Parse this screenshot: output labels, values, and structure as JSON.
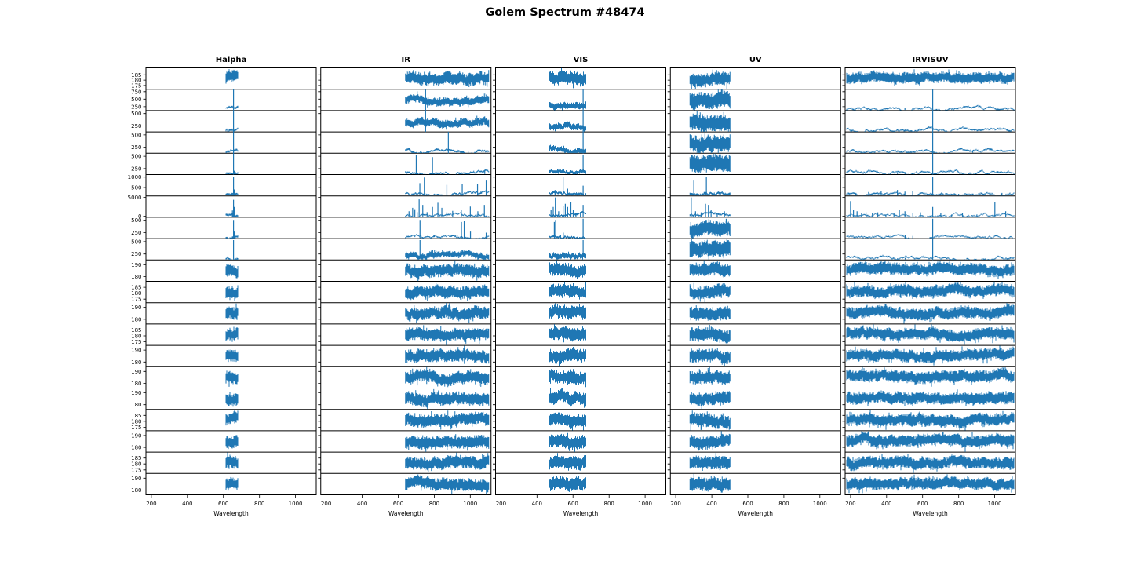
{
  "title": "Golem Spectrum #48474",
  "style": {
    "line_color": "#1f77b4",
    "axis_color": "#000000",
    "background": "#ffffff",
    "text_color": "#000000"
  },
  "chart_data": {
    "type": "line",
    "title": "Golem Spectrum #48474",
    "xlabel": "Wavelength",
    "x_ticks": [
      200,
      400,
      600,
      800,
      1000
    ],
    "xlim": [
      170,
      1115
    ],
    "grid": {
      "rows": 20,
      "cols": 5,
      "legend": "none",
      "gridlines": false
    },
    "line_color": "#1f77b4",
    "columns": [
      {
        "label": "Halpha",
        "wavelength_range": [
          615,
          680
        ]
      },
      {
        "label": "IR",
        "wavelength_range": [
          640,
          1100
        ]
      },
      {
        "label": "VIS",
        "wavelength_range": [
          465,
          670
        ]
      },
      {
        "label": "UV",
        "wavelength_range": [
          278,
          500
        ]
      },
      {
        "label": "IRVISUV",
        "wavelength_range": [
          180,
          1105
        ]
      }
    ],
    "rows": [
      {
        "ylim": [
          171.5,
          191.5
        ],
        "yticks": [
          175,
          180,
          185
        ]
      },
      {
        "ylim": [
          120,
          830
        ],
        "yticks": [
          250,
          500,
          750
        ]
      },
      {
        "ylim": [
          130,
          560
        ],
        "yticks": [
          250,
          500
        ]
      },
      {
        "ylim": [
          130,
          560
        ],
        "yticks": [
          250,
          500
        ]
      },
      {
        "ylim": [
          130,
          560
        ],
        "yticks": [
          250,
          500
        ]
      },
      {
        "ylim": [
          100,
          1120
        ],
        "yticks": [
          500,
          1000
        ]
      },
      {
        "ylim": [
          -250,
          5350
        ],
        "yticks": [
          0,
          5000
        ]
      },
      {
        "ylim": [
          130,
          560
        ],
        "yticks": [
          250,
          500
        ]
      },
      {
        "ylim": [
          130,
          560
        ],
        "yticks": [
          250,
          500
        ]
      },
      {
        "ylim": [
          176,
          194
        ],
        "yticks": [
          180,
          190
        ]
      },
      {
        "ylim": [
          172,
          190
        ],
        "yticks": [
          175,
          180,
          185
        ]
      },
      {
        "ylim": [
          176,
          194
        ],
        "yticks": [
          180,
          190
        ]
      },
      {
        "ylim": [
          172,
          190
        ],
        "yticks": [
          175,
          180,
          185
        ]
      },
      {
        "ylim": [
          176,
          194
        ],
        "yticks": [
          180,
          190
        ]
      },
      {
        "ylim": [
          176,
          194
        ],
        "yticks": [
          180,
          190
        ]
      },
      {
        "ylim": [
          176,
          194
        ],
        "yticks": [
          180,
          190
        ]
      },
      {
        "ylim": [
          172,
          190
        ],
        "yticks": [
          175,
          180,
          185
        ]
      },
      {
        "ylim": [
          176,
          194
        ],
        "yticks": [
          180,
          190
        ]
      },
      {
        "ylim": [
          172,
          190
        ],
        "yticks": [
          175,
          180,
          185
        ]
      },
      {
        "ylim": [
          176,
          194
        ],
        "yticks": [
          180,
          190
        ]
      }
    ],
    "cells_top": [
      [
        {
          "b": 0.55,
          "a": 0.3
        },
        {
          "b": 0.52,
          "a": 0.3
        },
        {
          "b": 0.55,
          "a": 0.33
        },
        {
          "b": 0.5,
          "a": 0.32
        },
        {
          "b": 0.55,
          "a": 0.26
        }
      ],
      [
        {
          "b": 0.08,
          "a": 0.05,
          "s": [
            [
              656,
              0.96
            ]
          ]
        },
        {
          "b": 0.45,
          "a": 0.2,
          "s": [
            [
              752,
              0.95
            ]
          ]
        },
        {
          "b": 0.22,
          "a": 0.16,
          "s": [
            [
              656,
              0.96
            ]
          ]
        },
        {
          "b": 0.48,
          "a": 0.4
        },
        {
          "b": 0.09,
          "a": 0.035,
          "s": [
            [
              502,
              0.12
            ],
            [
              656,
              0.96
            ],
            [
              760,
              0.06
            ]
          ]
        }
      ],
      [
        {
          "b": 0.08,
          "a": 0.05,
          "s": [
            [
              656,
              0.96
            ]
          ]
        },
        {
          "b": 0.4,
          "a": 0.2,
          "s": [
            [
              752,
              0.95
            ]
          ]
        },
        {
          "b": 0.22,
          "a": 0.16,
          "s": [
            [
              656,
              0.96
            ]
          ]
        },
        {
          "b": 0.48,
          "a": 0.4
        },
        {
          "b": 0.09,
          "a": 0.035,
          "s": [
            [
              502,
              0.1
            ],
            [
              656,
              0.96
            ]
          ]
        }
      ],
      [
        {
          "b": 0.08,
          "a": 0.05,
          "s": [
            [
              656,
              0.96
            ]
          ]
        },
        {
          "b": 0.1,
          "a": 0.05,
          "s": [
            [
              878,
              0.94
            ]
          ]
        },
        {
          "b": 0.2,
          "a": 0.14,
          "s": [
            [
              656,
              0.96
            ]
          ]
        },
        {
          "b": 0.48,
          "a": 0.42
        },
        {
          "b": 0.09,
          "a": 0.035,
          "s": [
            [
              656,
              0.96
            ],
            [
              878,
              0.1
            ]
          ]
        }
      ],
      [
        {
          "b": 0.08,
          "a": 0.05,
          "s": [
            [
              656,
              0.94
            ],
            [
              661,
              0.18
            ]
          ]
        },
        {
          "b": 0.09,
          "a": 0.045,
          "s": [
            [
              700,
              0.92
            ],
            [
              790,
              0.82
            ],
            [
              1080,
              0.18
            ]
          ]
        },
        {
          "b": 0.14,
          "a": 0.09,
          "s": [
            [
              550,
              0.14
            ],
            [
              656,
              0.93
            ]
          ]
        },
        {
          "b": 0.48,
          "a": 0.42
        },
        {
          "b": 0.09,
          "a": 0.035,
          "s": [
            [
              460,
              0.08
            ],
            [
              502,
              0.12
            ],
            [
              656,
              0.94
            ]
          ]
        }
      ],
      [
        {
          "b": 0.08,
          "a": 0.05,
          "s": [
            [
              650,
              0.14
            ],
            [
              656,
              0.9
            ],
            [
              661,
              0.3
            ]
          ]
        },
        {
          "b": 0.08,
          "a": 0.04,
          "s": [
            [
              720,
              0.6
            ],
            [
              745,
              0.86
            ],
            [
              870,
              0.52
            ],
            [
              955,
              0.56
            ],
            [
              1040,
              0.54
            ],
            [
              1088,
              0.72
            ]
          ]
        },
        {
          "b": 0.1,
          "a": 0.06,
          "s": [
            [
              500,
              0.28
            ],
            [
              545,
              0.88
            ],
            [
              570,
              0.34
            ],
            [
              620,
              0.14
            ],
            [
              656,
              0.48
            ]
          ]
        },
        {
          "b": 0.1,
          "a": 0.06,
          "s": [
            [
              300,
              0.72
            ],
            [
              370,
              0.9
            ]
          ]
        },
        {
          "b": 0.08,
          "a": 0.035,
          "s": [
            [
              230,
              0.14
            ],
            [
              300,
              0.18
            ],
            [
              370,
              0.24
            ],
            [
              460,
              0.28
            ],
            [
              502,
              0.2
            ],
            [
              545,
              0.24
            ],
            [
              656,
              0.88
            ],
            [
              800,
              0.1
            ],
            [
              1040,
              0.14
            ]
          ]
        }
      ],
      [
        {
          "b": 0.09,
          "a": 0.06,
          "s": [
            [
              650,
              0.32
            ],
            [
              654,
              0.22
            ],
            [
              656,
              0.82
            ],
            [
              660,
              0.48
            ],
            [
              664,
              0.18
            ]
          ]
        },
        {
          "b": 0.06,
          "a": 0.035,
          "s": [
            [
              660,
              0.28
            ],
            [
              680,
              0.44
            ],
            [
              692,
              0.38
            ],
            [
              705,
              0.24
            ],
            [
              716,
              0.84
            ],
            [
              736,
              0.58
            ],
            [
              760,
              0.24
            ],
            [
              790,
              0.48
            ],
            [
              820,
              0.68
            ],
            [
              842,
              0.44
            ],
            [
              870,
              0.24
            ],
            [
              902,
              0.3
            ],
            [
              950,
              0.34
            ],
            [
              1000,
              0.5
            ],
            [
              1042,
              0.28
            ],
            [
              1078,
              0.58
            ]
          ]
        },
        {
          "b": 0.07,
          "a": 0.045,
          "s": [
            [
              478,
              0.34
            ],
            [
              490,
              0.48
            ],
            [
              502,
              0.93
            ],
            [
              520,
              0.28
            ],
            [
              545,
              0.53
            ],
            [
              557,
              0.63
            ],
            [
              570,
              0.48
            ],
            [
              588,
              0.72
            ],
            [
              601,
              0.33
            ],
            [
              616,
              0.18
            ],
            [
              641,
              0.23
            ],
            [
              656,
              0.58
            ]
          ]
        },
        {
          "b": 0.07,
          "a": 0.045,
          "s": [
            [
              286,
              0.93
            ],
            [
              310,
              0.28
            ],
            [
              341,
              0.23
            ],
            [
              365,
              0.63
            ],
            [
              381,
              0.58
            ],
            [
              396,
              0.33
            ],
            [
              430,
              0.18
            ],
            [
              470,
              0.28
            ]
          ]
        },
        {
          "b": 0.07,
          "a": 0.03,
          "s": [
            [
              200,
              0.76
            ],
            [
              216,
              0.33
            ],
            [
              236,
              0.28
            ],
            [
              261,
              0.18
            ],
            [
              286,
              0.23
            ],
            [
              321,
              0.18
            ],
            [
              351,
              0.23
            ],
            [
              396,
              0.13
            ],
            [
              441,
              0.18
            ],
            [
              471,
              0.33
            ],
            [
              502,
              0.28
            ],
            [
              546,
              0.18
            ],
            [
              588,
              0.23
            ],
            [
              656,
              0.48
            ],
            [
              701,
              0.18
            ],
            [
              761,
              0.13
            ],
            [
              821,
              0.18
            ],
            [
              901,
              0.13
            ],
            [
              1001,
              0.72
            ],
            [
              1061,
              0.28
            ]
          ]
        }
      ],
      [
        {
          "b": 0.08,
          "a": 0.05,
          "s": [
            [
              650,
              0.1
            ],
            [
              656,
              0.88
            ],
            [
              660,
              0.33
            ]
          ]
        },
        {
          "b": 0.07,
          "a": 0.035,
          "s": [
            [
              721,
              0.88
            ],
            [
              951,
              0.78
            ],
            [
              966,
              0.84
            ],
            [
              1001,
              0.33
            ],
            [
              1088,
              0.28
            ]
          ]
        },
        {
          "b": 0.08,
          "a": 0.05,
          "s": [
            [
              496,
              0.78
            ],
            [
              503,
              0.88
            ],
            [
              531,
              0.18
            ],
            [
              546,
              0.28
            ],
            [
              656,
              0.93
            ]
          ]
        },
        {
          "b": 0.42,
          "a": 0.36,
          "s": [
            [
              480,
              0.93
            ]
          ]
        },
        {
          "b": 0.08,
          "a": 0.03,
          "s": [
            [
              503,
              0.18
            ],
            [
              546,
              0.13
            ],
            [
              656,
              0.93
            ],
            [
              951,
              0.1
            ]
          ]
        }
      ],
      [
        {
          "b": 0.08,
          "a": 0.05,
          "s": [
            [
              656,
              0.93
            ]
          ]
        },
        {
          "b": 0.22,
          "a": 0.15,
          "s": [
            [
              721,
              0.93
            ],
            [
              791,
              0.48
            ]
          ]
        },
        {
          "b": 0.2,
          "a": 0.14,
          "s": [
            [
              656,
              0.93
            ]
          ]
        },
        {
          "b": 0.48,
          "a": 0.4,
          "s": [
            [
              461,
              0.18
            ]
          ]
        },
        {
          "b": 0.09,
          "a": 0.035,
          "s": [
            [
              461,
              0.08
            ],
            [
              503,
              0.1
            ],
            [
              656,
              0.96
            ]
          ]
        }
      ]
    ],
    "cells_repeat": [
      {
        "b": 0.52,
        "a": 0.3
      },
      {
        "b": 0.5,
        "a": 0.3
      },
      {
        "b": 0.52,
        "a": 0.32
      },
      {
        "b": 0.5,
        "a": 0.32
      },
      {
        "b": 0.53,
        "a": 0.28
      }
    ]
  }
}
